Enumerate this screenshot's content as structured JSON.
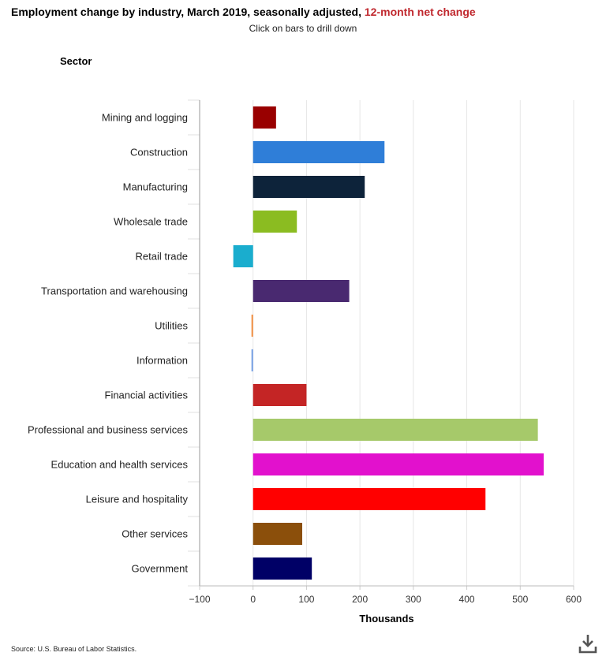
{
  "header": {
    "title_main": "Employment change by industry, March 2019, seasonally adjusted,",
    "title_accent": "12-month net change",
    "subtitle": "Click on bars to drill down",
    "accent_color": "#c0282e"
  },
  "footer": {
    "source": "Source: U.S. Bureau of Labor Statistics.",
    "download_icon": "download-icon"
  },
  "chart_data": {
    "type": "bar",
    "orientation": "horizontal",
    "title": "Employment change by industry, March 2019, seasonally adjusted, 12-month net change",
    "subtitle": "Click on bars to drill down",
    "category_axis_title": "Sector",
    "xlabel": "Thousands",
    "xlim": [
      -100,
      600
    ],
    "xticks": [
      -100,
      0,
      100,
      200,
      300,
      400,
      500,
      600
    ],
    "xtick_labels": [
      "−100",
      "0",
      "100",
      "200",
      "300",
      "400",
      "500",
      "600"
    ],
    "grid": true,
    "categories": [
      "Mining and logging",
      "Construction",
      "Manufacturing",
      "Wholesale trade",
      "Retail trade",
      "Transportation and warehousing",
      "Utilities",
      "Information",
      "Financial activities",
      "Professional and business services",
      "Education and health services",
      "Leisure and hospitality",
      "Other services",
      "Government"
    ],
    "values": [
      43,
      246,
      209,
      82,
      -37,
      180,
      -3,
      -3,
      100,
      533,
      544,
      435,
      92,
      110
    ],
    "colors": [
      "#990000",
      "#2f7ed8",
      "#0d233a",
      "#8bbc21",
      "#1aadce",
      "#492970",
      "#f28f43",
      "#77a1e5",
      "#c42525",
      "#a6c96a",
      "#e211cd",
      "#ff0000",
      "#8b4f0b",
      "#000066"
    ]
  }
}
